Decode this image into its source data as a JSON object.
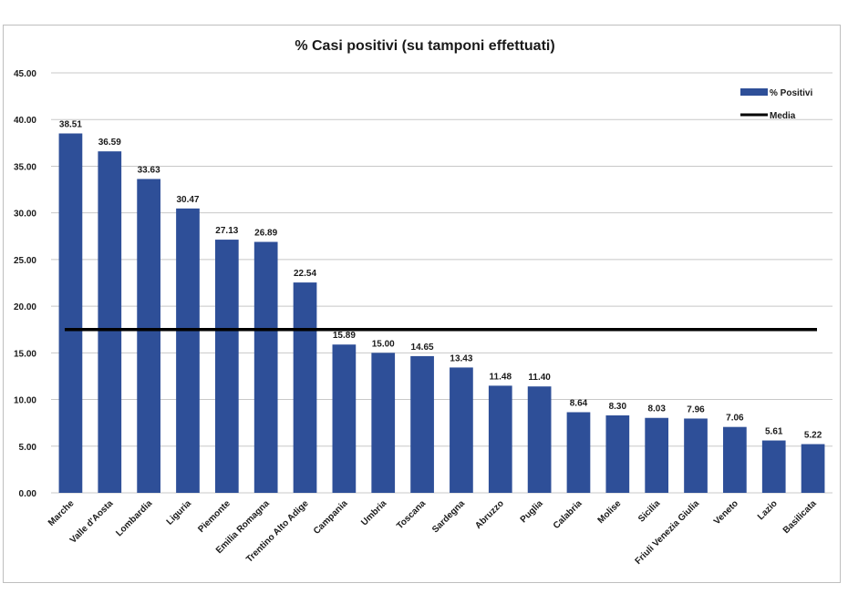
{
  "chart_data": {
    "type": "bar",
    "title": "% Casi positivi (su tamponi effettuati)",
    "categories": [
      "Marche",
      "Valle d'Aosta",
      "Lombardia",
      "Liguria",
      "Piemonte",
      "Emilia Romagna",
      "Trentino Alto Adige",
      "Campania",
      "Umbria",
      "Toscana",
      "Sardegna",
      "Abruzzo",
      "Puglia",
      "Calabria",
      "Molise",
      "Sicilia",
      "Friuli Venezia Giulia",
      "Veneto",
      "Lazio",
      "Basilicata"
    ],
    "series": [
      {
        "name": "% Positivi",
        "color": "#2e4f98",
        "values": [
          38.51,
          36.59,
          33.63,
          30.47,
          27.13,
          26.89,
          22.54,
          15.89,
          15.0,
          14.65,
          13.43,
          11.48,
          11.4,
          8.64,
          8.3,
          8.03,
          7.96,
          7.06,
          5.61,
          5.22
        ],
        "data_labels": [
          "38.51",
          "36.59",
          "33.63",
          "30.47",
          "27.13",
          "26.89",
          "22.54",
          "15.89",
          "15.00",
          "14.65",
          "13.43",
          "11.48",
          "11.40",
          "8.64",
          "8.30",
          "8.03",
          "7.96",
          "7.06",
          "5.61",
          "5.22"
        ]
      }
    ],
    "reference_line": {
      "name": "Media",
      "value": 17.5,
      "color": "#000000"
    },
    "ylim": [
      0,
      45
    ],
    "yticks": [
      "0.00",
      "5.00",
      "10.00",
      "15.00",
      "20.00",
      "25.00",
      "30.00",
      "35.00",
      "40.00",
      "45.00"
    ],
    "xlabel": "",
    "ylabel": "",
    "grid": true,
    "legend_position": "top-right"
  }
}
